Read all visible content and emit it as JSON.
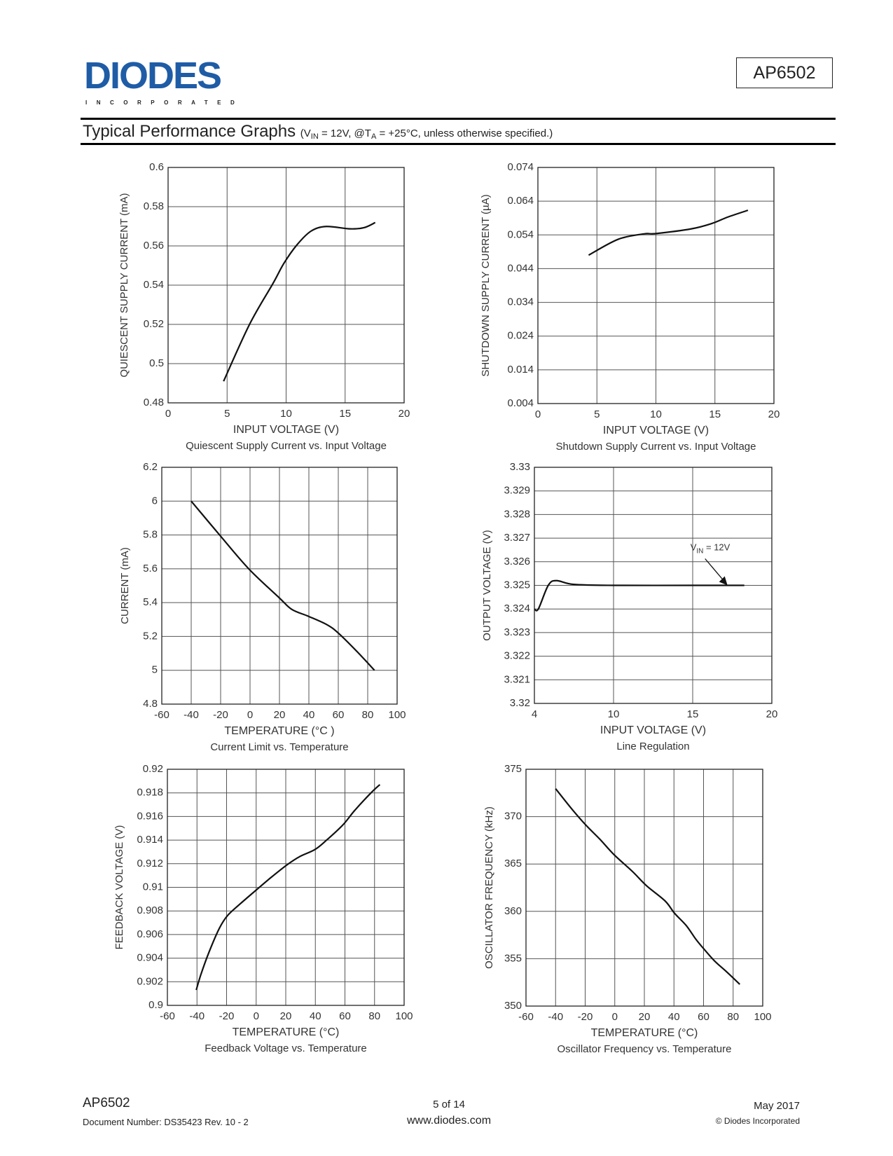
{
  "header": {
    "logo_text": "DIODES",
    "logo_subtext": "INCORPORATED",
    "logo_color": "#1f5ca6",
    "part_number": "AP6502"
  },
  "section": {
    "title": "Typical Performance Graphs",
    "condition": {
      "open": "(V",
      "sub1": "IN",
      "mid": " = 12V, @T",
      "sub2": "A",
      "close": " = +25°C, unless otherwise specified.)"
    }
  },
  "chart_data": [
    {
      "type": "line",
      "title": "Quiescent Supply Current vs. Input Voltage",
      "xlabel": "INPUT VOLTAGE (V)",
      "ylabel": "QUIESCENT SUPPLY CURRENT (mA)",
      "xlim": [
        0,
        20
      ],
      "ylim": [
        0.48,
        0.6
      ],
      "xticks": [
        "0",
        "5",
        "10",
        "15",
        "20"
      ],
      "yticks": [
        "0.6",
        "0.58",
        "0.56",
        "0.54",
        "0.52",
        "0.5",
        "0.48"
      ],
      "grid": true,
      "x": [
        4.7,
        6.9,
        8.9,
        9.8,
        10.9,
        12.1,
        13.4,
        15.4,
        16.6,
        17.55
      ],
      "y": [
        0.491,
        0.52,
        0.541,
        0.551,
        0.5604,
        0.5675,
        0.5699,
        0.5687,
        0.5693,
        0.5719
      ]
    },
    {
      "type": "line",
      "title": "Shutdown Supply Current vs. Input Voltage",
      "xlabel": "INPUT VOLTAGE (V)",
      "ylabel": "SHUTDOWN SUPPLY CURRENT (µA)",
      "xlim": [
        0,
        20
      ],
      "ylim": [
        0.004,
        0.074
      ],
      "xticks": [
        "0",
        "5",
        "10",
        "15",
        "20"
      ],
      "yticks": [
        "0.074",
        "0.064",
        "0.054",
        "0.044",
        "0.034",
        "0.024",
        "0.014",
        "0.004"
      ],
      "grid": true,
      "x": [
        4.3,
        6.8,
        9.0,
        10.0,
        13.0,
        14.75,
        16.1,
        17.8
      ],
      "y": [
        0.048,
        0.0527,
        0.0543,
        0.0544,
        0.0558,
        0.0574,
        0.0593,
        0.0613
      ]
    },
    {
      "type": "line",
      "title": "Current Limit vs. Temperature",
      "xlabel": "TEMPERATURE (°C )",
      "ylabel": "CURRENT (mA)",
      "xlim": [
        -60,
        100
      ],
      "ylim": [
        4.8,
        6.2
      ],
      "xticks": [
        "-60",
        "-40",
        "-20",
        "0",
        "20",
        "40",
        "60",
        "80",
        "100"
      ],
      "yticks": [
        "6.2",
        "6",
        "5.8",
        "5.6",
        "5.4",
        "5.2",
        "5",
        "4.8"
      ],
      "grid": true,
      "x": [
        -40,
        -20.7,
        -0.9,
        19.7,
        28.4,
        39.5,
        52.2,
        60,
        72.8,
        84.6
      ],
      "y": [
        6.0,
        5.8,
        5.6,
        5.43,
        5.36,
        5.32,
        5.27,
        5.22,
        5.11,
        5.0
      ]
    },
    {
      "type": "line",
      "title": "Line Regulation",
      "xlabel": "INPUT VOLTAGE (V)",
      "ylabel": "OUTPUT VOLTAGE (V)",
      "xlim": [
        4,
        20
      ],
      "ylim": [
        3.32,
        3.33
      ],
      "xticks": [
        "4",
        "10",
        "15",
        "20"
      ],
      "yticks": [
        "3.33",
        "3.329",
        "3.328",
        "3.327",
        "3.326",
        "3.325",
        "3.324",
        "3.323",
        "3.322",
        "3.321",
        "3.32"
      ],
      "grid": true,
      "x": [
        4.0,
        4.3,
        5.05,
        5.67,
        6.98,
        10,
        15,
        18.26
      ],
      "y": [
        3.324,
        3.324,
        3.325,
        3.3252,
        3.32504,
        3.325,
        3.325,
        3.325
      ],
      "annotation": {
        "v": "V",
        "sub": "IN",
        "rest": " = 12V",
        "x": 17.2,
        "y": 3.325
      }
    },
    {
      "type": "line",
      "title": "Feedback Voltage vs. Temperature",
      "xlabel": "TEMPERATURE (°C)",
      "ylabel": "FEEDBACK VOLTAGE (V)",
      "xlim": [
        -60,
        100
      ],
      "ylim": [
        0.9,
        0.92
      ],
      "xticks": [
        "-60",
        "-40",
        "-20",
        "0",
        "20",
        "40",
        "60",
        "80",
        "100"
      ],
      "yticks": [
        "0.92",
        "0.918",
        "0.916",
        "0.914",
        "0.912",
        "0.91",
        "0.908",
        "0.906",
        "0.904",
        "0.902",
        "0.9"
      ],
      "grid": true,
      "x": [
        -40.5,
        -37.4,
        -31.9,
        -25,
        -19.4,
        -10.8,
        0.3,
        9.7,
        20.8,
        29.4,
        39.7,
        47.6,
        58.7,
        66.5,
        77.6,
        83.6
      ],
      "y": [
        0.9013,
        0.9026,
        0.9045,
        0.9065,
        0.9076,
        0.9086,
        0.9098,
        0.9108,
        0.9119,
        0.9126,
        0.9132,
        0.914,
        0.9153,
        0.9165,
        0.918,
        0.9187
      ]
    },
    {
      "type": "line",
      "title": "Oscillator Frequency vs. Temperature",
      "xlabel": "TEMPERATURE (°C)",
      "ylabel": "OSCILLATOR FREQUENCY (kHz)",
      "xlim": [
        -60,
        100
      ],
      "ylim": [
        350,
        375
      ],
      "xticks": [
        "-60",
        "-40",
        "-20",
        "0",
        "20",
        "40",
        "60",
        "80",
        "100"
      ],
      "yticks": [
        "375",
        "370",
        "365",
        "360",
        "355",
        "350"
      ],
      "grid": true,
      "x": [
        -40,
        -29,
        -19.5,
        -10,
        -0.6,
        12,
        21.5,
        34,
        40.4,
        48.3,
        54.6,
        59.3,
        67.2,
        75,
        84.5
      ],
      "y": [
        372.95,
        370.8,
        369.1,
        367.6,
        366.0,
        364.2,
        362.7,
        361.1,
        359.8,
        358.5,
        357.1,
        356.2,
        354.8,
        353.7,
        352.3
      ]
    }
  ],
  "footer": {
    "part_number": "AP6502",
    "document_number": "Document Number: DS35423  Rev. 10 - 2",
    "page": "5 of 14",
    "website": "www.diodes.com",
    "date": "May 2017",
    "copyright": "© Diodes Incorporated"
  }
}
